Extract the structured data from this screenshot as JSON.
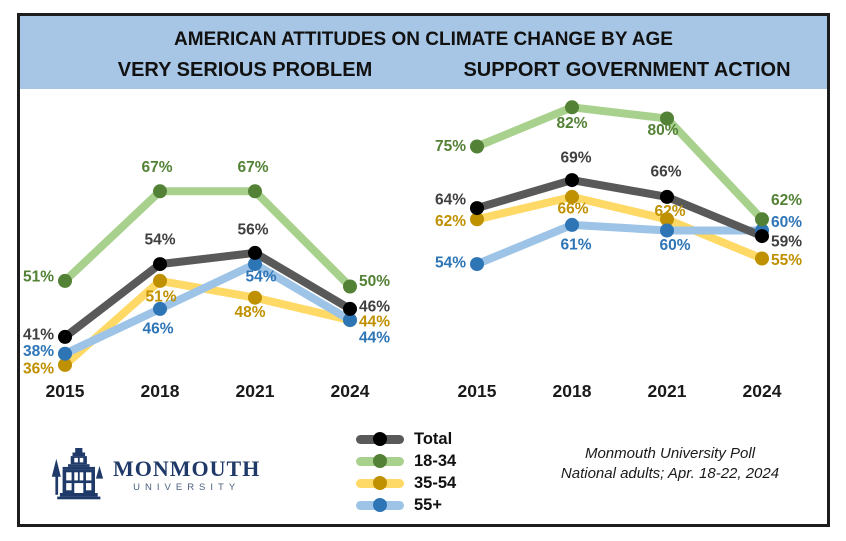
{
  "header": {
    "title": "AMERICAN ATTITUDES ON CLIMATE CHANGE BY AGE",
    "left_subtitle": "VERY SERIOUS PROBLEM",
    "right_subtitle": "SUPPORT GOVERNMENT ACTION",
    "background_color": "#a7c6e5"
  },
  "chart_data": [
    {
      "type": "line",
      "title": "VERY SERIOUS PROBLEM",
      "x": [
        "2015",
        "2018",
        "2021",
        "2024"
      ],
      "series": [
        {
          "name": "Total",
          "values": [
            41,
            54,
            56,
            46
          ],
          "line_color": "#595959",
          "marker_color": "#000000",
          "label_color": "#404040"
        },
        {
          "name": "18-34",
          "values": [
            51,
            67,
            67,
            50
          ],
          "line_color": "#a9d18e",
          "marker_color": "#538135",
          "label_color": "#538135"
        },
        {
          "name": "35-54",
          "values": [
            36,
            51,
            48,
            44
          ],
          "line_color": "#ffd966",
          "marker_color": "#bf9000",
          "label_color": "#bf9000"
        },
        {
          "name": "55+",
          "values": [
            38,
            46,
            54,
            44
          ],
          "line_color": "#9dc3e6",
          "marker_color": "#2e75b6",
          "label_color": "#2e75b6"
        }
      ],
      "data_label_format": "percent",
      "grid": false,
      "legend_position": "bottom-center",
      "ylim": [
        30,
        90
      ]
    },
    {
      "type": "line",
      "title": "SUPPORT GOVERNMENT ACTION",
      "x": [
        "2015",
        "2018",
        "2021",
        "2024"
      ],
      "series": [
        {
          "name": "Total",
          "values": [
            64,
            69,
            66,
            59
          ],
          "line_color": "#595959",
          "marker_color": "#000000",
          "label_color": "#404040"
        },
        {
          "name": "18-34",
          "values": [
            75,
            82,
            80,
            62
          ],
          "line_color": "#a9d18e",
          "marker_color": "#538135",
          "label_color": "#538135"
        },
        {
          "name": "35-54",
          "values": [
            62,
            66,
            62,
            55
          ],
          "line_color": "#ffd966",
          "marker_color": "#bf9000",
          "label_color": "#bf9000"
        },
        {
          "name": "55+",
          "values": [
            54,
            61,
            60,
            60
          ],
          "line_color": "#9dc3e6",
          "marker_color": "#2e75b6",
          "label_color": "#2e75b6"
        }
      ],
      "data_label_format": "percent",
      "grid": false,
      "legend_position": "bottom-center",
      "ylim": [
        30,
        90
      ]
    }
  ],
  "legend": {
    "items": [
      "Total",
      "18-34",
      "35-54",
      "55+"
    ]
  },
  "footer": {
    "line1": "Monmouth University Poll",
    "line2": "National adults; Apr. 18-22, 2024"
  },
  "logo": {
    "name": "MONMOUTH",
    "subname": "UNIVERSITY",
    "color": "#1f3a68"
  }
}
